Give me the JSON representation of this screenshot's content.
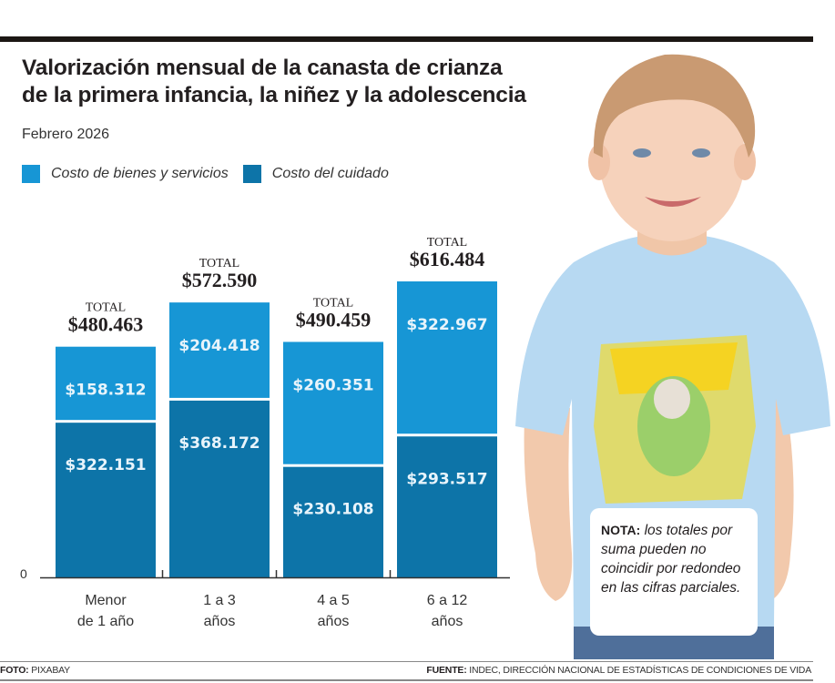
{
  "header": {
    "title_line1": "Valorización mensual de la canasta de crianza",
    "title_line2": "de la primera infancia, la niñez y la adolescencia",
    "subtitle": "Febrero 2026"
  },
  "legend": [
    {
      "label": "Costo de bienes y servicios",
      "color": "#1796d5"
    },
    {
      "label": "Costo del cuidado",
      "color": "#0d74a8"
    }
  ],
  "note": {
    "prefix": "NOTA:",
    "text": "los totales por suma pueden no coincidir por redondeo en las cifras parciales."
  },
  "footer": {
    "photo_prefix": "FOTO:",
    "photo_credit": "PIXABAY",
    "source_prefix": "FUENTE:",
    "source_text": "INDEC, DIRECCIÓN NACIONAL DE ESTADÍSTICAS DE CONDICIONES DE VIDA"
  },
  "photo": {
    "description": "smiling child wearing a light blue Toy Story t-shirt"
  },
  "chart_data": {
    "type": "bar",
    "stacked": true,
    "title": "Valorización mensual de la canasta de crianza de la primera infancia, la niñez y la adolescencia",
    "subtitle": "Febrero 2026",
    "xlabel": "",
    "ylabel": "",
    "ylim": [
      0,
      616484
    ],
    "y_tick_labels": [
      "0"
    ],
    "grid": false,
    "legend_position": "top-left",
    "categories": [
      "Menor de 1 año",
      "1 a 3 años",
      "4 a 5 años",
      "6 a 12 años"
    ],
    "category_lines": [
      [
        "Menor",
        "de 1 año"
      ],
      [
        "1 a 3",
        "años"
      ],
      [
        "4 a 5",
        "años"
      ],
      [
        "6 a 12",
        "años"
      ]
    ],
    "series": [
      {
        "name": "Costo del cuidado",
        "color": "#0d74a8",
        "values": [
          322151,
          368172,
          230108,
          293517
        ],
        "labels": [
          "$322.151",
          "$368.172",
          "$230.108",
          "$293.517"
        ]
      },
      {
        "name": "Costo de bienes y servicios",
        "color": "#1796d5",
        "values": [
          158312,
          204418,
          260351,
          322967
        ],
        "labels": [
          "$158.312",
          "$204.418",
          "$260.351",
          "$322.967"
        ]
      }
    ],
    "totals": {
      "caption": "TOTAL",
      "values": [
        480463,
        572590,
        490459,
        616484
      ],
      "labels": [
        "$480.463",
        "$572.590",
        "$490.459",
        "$616.484"
      ]
    }
  }
}
